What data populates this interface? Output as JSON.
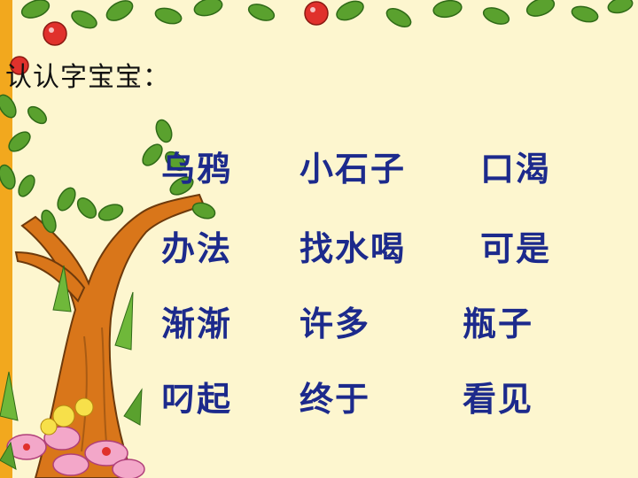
{
  "title": "认认字宝宝：",
  "words": [
    [
      "乌鸦",
      "小石子",
      "口渴"
    ],
    [
      "办法",
      "找水喝",
      "可是"
    ],
    [
      "渐渐",
      "许多",
      "瓶子"
    ],
    [
      "叼起",
      "终于",
      "看见"
    ]
  ],
  "colors": {
    "background": "#fdf6cf",
    "word_text": "#1c2a8c",
    "title_text": "#111111",
    "trunk": "#d9761a",
    "leaf": "#4f9a2a",
    "apple": "#e0312c"
  },
  "icons": [
    "tree-illustration",
    "leaf-garland",
    "apple-icon",
    "flower-icon"
  ]
}
